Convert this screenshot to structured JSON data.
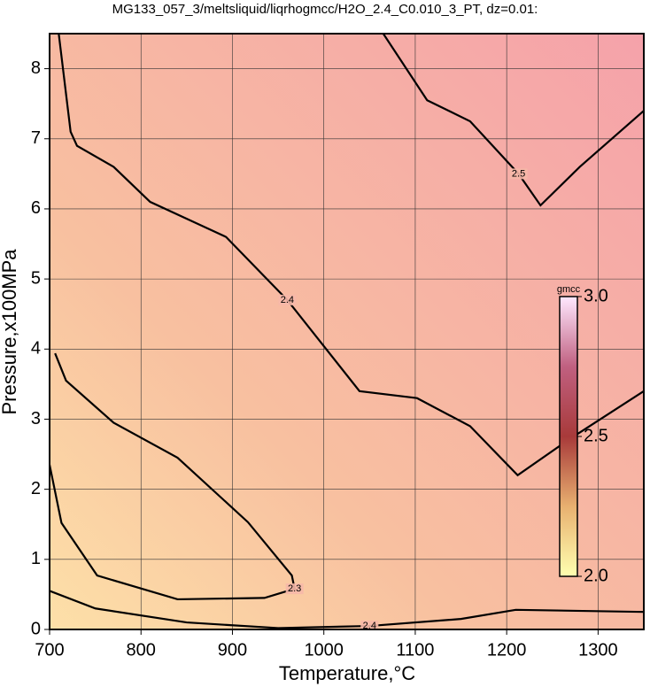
{
  "chart_data": {
    "type": "contour",
    "title": "MG133_057_3/meltsliquid/liqrhogmcc/H2O_2.4_C0.010_3_PT, dz=0.01:",
    "x_label": "Temperature,°C",
    "y_label": "Pressure,x100MPa",
    "xlim": [
      700,
      1350
    ],
    "ylim": [
      0,
      8.5
    ],
    "xticks": [
      700,
      800,
      900,
      1000,
      1100,
      1200,
      1300
    ],
    "yticks": [
      0,
      1,
      2,
      3,
      4,
      5,
      6,
      7,
      8
    ],
    "grid": true,
    "contours": [
      {
        "level": 2.4,
        "x": [
          710,
          723,
          730,
          770,
          810,
          893,
          960,
          1039,
          1102,
          1160,
          1212,
          1267,
          1350
        ],
        "y": [
          8.5,
          7.1,
          6.9,
          6.6,
          6.1,
          5.6,
          4.7,
          3.4,
          3.3,
          2.9,
          2.2,
          2.7,
          3.4
        ]
      },
      {
        "level": 2.5,
        "x": [
          1065,
          1113,
          1160,
          1213,
          1237,
          1280,
          1350
        ],
        "y": [
          8.5,
          7.55,
          7.25,
          6.5,
          6.05,
          6.6,
          7.4
        ]
      },
      {
        "level": 2.3,
        "x": [
          706,
          718,
          770,
          840,
          917,
          965,
          968,
          935,
          840,
          752,
          713,
          700
        ],
        "y": [
          3.94,
          3.55,
          2.95,
          2.45,
          1.53,
          0.77,
          0.58,
          0.45,
          0.43,
          0.77,
          1.52,
          2.35
        ]
      },
      {
        "level": 2.4,
        "x": [
          700,
          750,
          850,
          950,
          1050,
          1150,
          1210,
          1350
        ],
        "y": [
          0.55,
          0.3,
          0.1,
          0.02,
          0.05,
          0.15,
          0.28,
          0.25
        ]
      }
    ],
    "colorbar": {
      "label": "gmcc",
      "lim": [
        2,
        3
      ],
      "ticks": [
        {
          "value": 2,
          "label": "2.0"
        },
        2.5,
        {
          "value": 3,
          "label": "3.0"
        }
      ],
      "colors": [
        "#ffffb0",
        "#e8b070",
        "#a83a3a",
        "#c06080",
        "#ffe8ff"
      ]
    }
  }
}
